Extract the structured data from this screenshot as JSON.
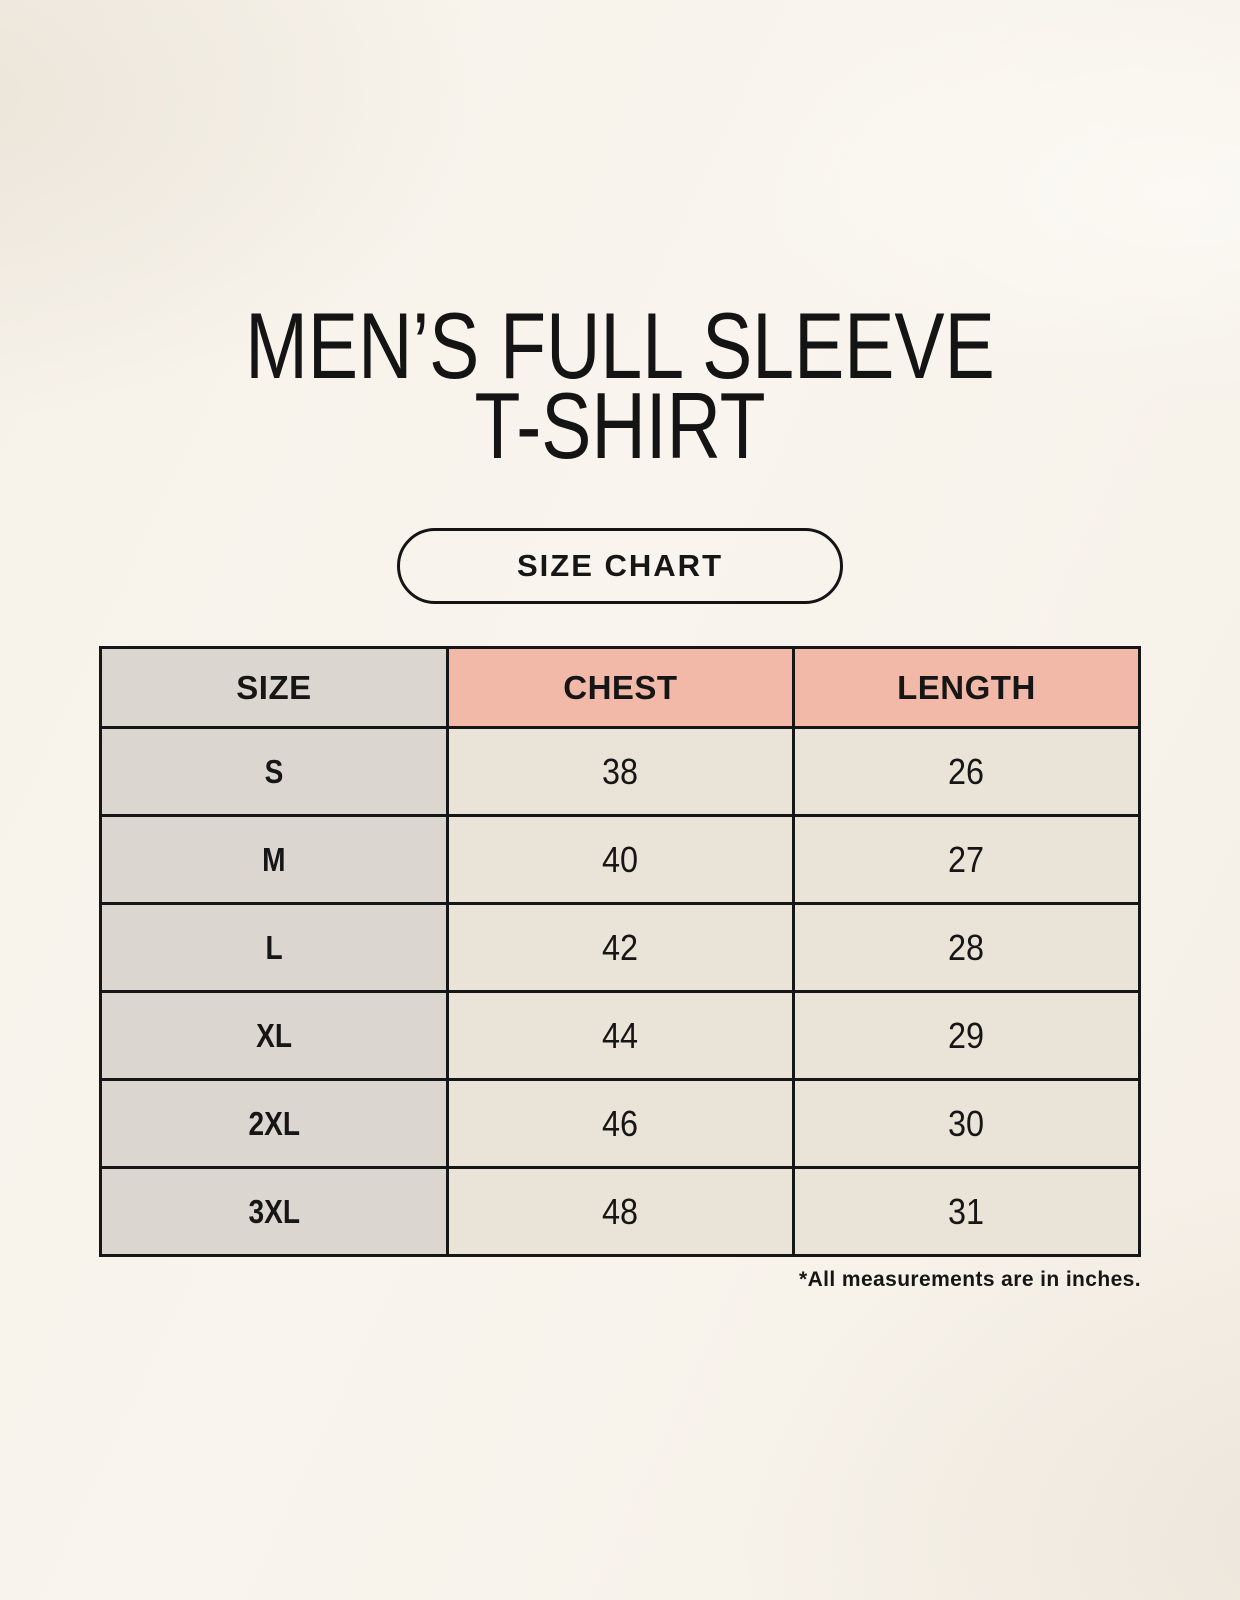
{
  "header": {
    "title_line1": "MEN’S FULL SLEEVE",
    "title_line2": "T-SHIRT",
    "size_chart_badge": "SIZE CHART"
  },
  "footnote": "*All measurements are in inches.",
  "colors": {
    "background": "#f7f2ea",
    "table_border": "#161616",
    "size_column_bg": "#dcd6d1",
    "measure_header_bg": "#f2b9a8",
    "data_cell_bg": "#eae3d7",
    "text": "#161616"
  },
  "chart_data": {
    "type": "table",
    "title": "MEN’S FULL SLEEVE T-SHIRT",
    "subtitle": "SIZE CHART",
    "columns": [
      "SIZE",
      "CHEST",
      "LENGTH"
    ],
    "units": "inches",
    "rows": [
      {
        "size": "S",
        "chest": 38,
        "length": 26
      },
      {
        "size": "M",
        "chest": 40,
        "length": 27
      },
      {
        "size": "L",
        "chest": 42,
        "length": 28
      },
      {
        "size": "XL",
        "chest": 44,
        "length": 29
      },
      {
        "size": "2XL",
        "chest": 46,
        "length": 30
      },
      {
        "size": "3XL",
        "chest": 48,
        "length": 31
      }
    ]
  }
}
